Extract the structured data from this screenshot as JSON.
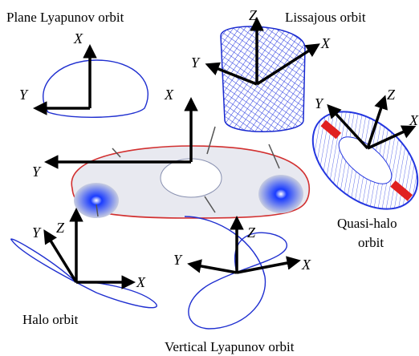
{
  "titles": {
    "plane_lyapunov": "Plane Lyapunov orbit",
    "lissajous": "Lissajous orbit",
    "quasi_halo": [
      "Quasi-halo",
      "orbit"
    ],
    "halo": "Halo orbit",
    "vertical_lyapunov": "Vertical Lyapunov orbit"
  },
  "frames": {
    "plane_lyapunov": {
      "x": "X",
      "y": "Y"
    },
    "lissajous": {
      "z": "Z",
      "y": "Y",
      "x": "X"
    },
    "center": {
      "x": "X",
      "y": "Y"
    },
    "quasi_halo": {
      "y": "Y",
      "z": "Z",
      "x": "X"
    },
    "halo": {
      "z": "Z",
      "y": "Y",
      "x": "X"
    },
    "vertical_lyapunov": {
      "z": "Z",
      "y": "Y",
      "x": "X"
    }
  }
}
